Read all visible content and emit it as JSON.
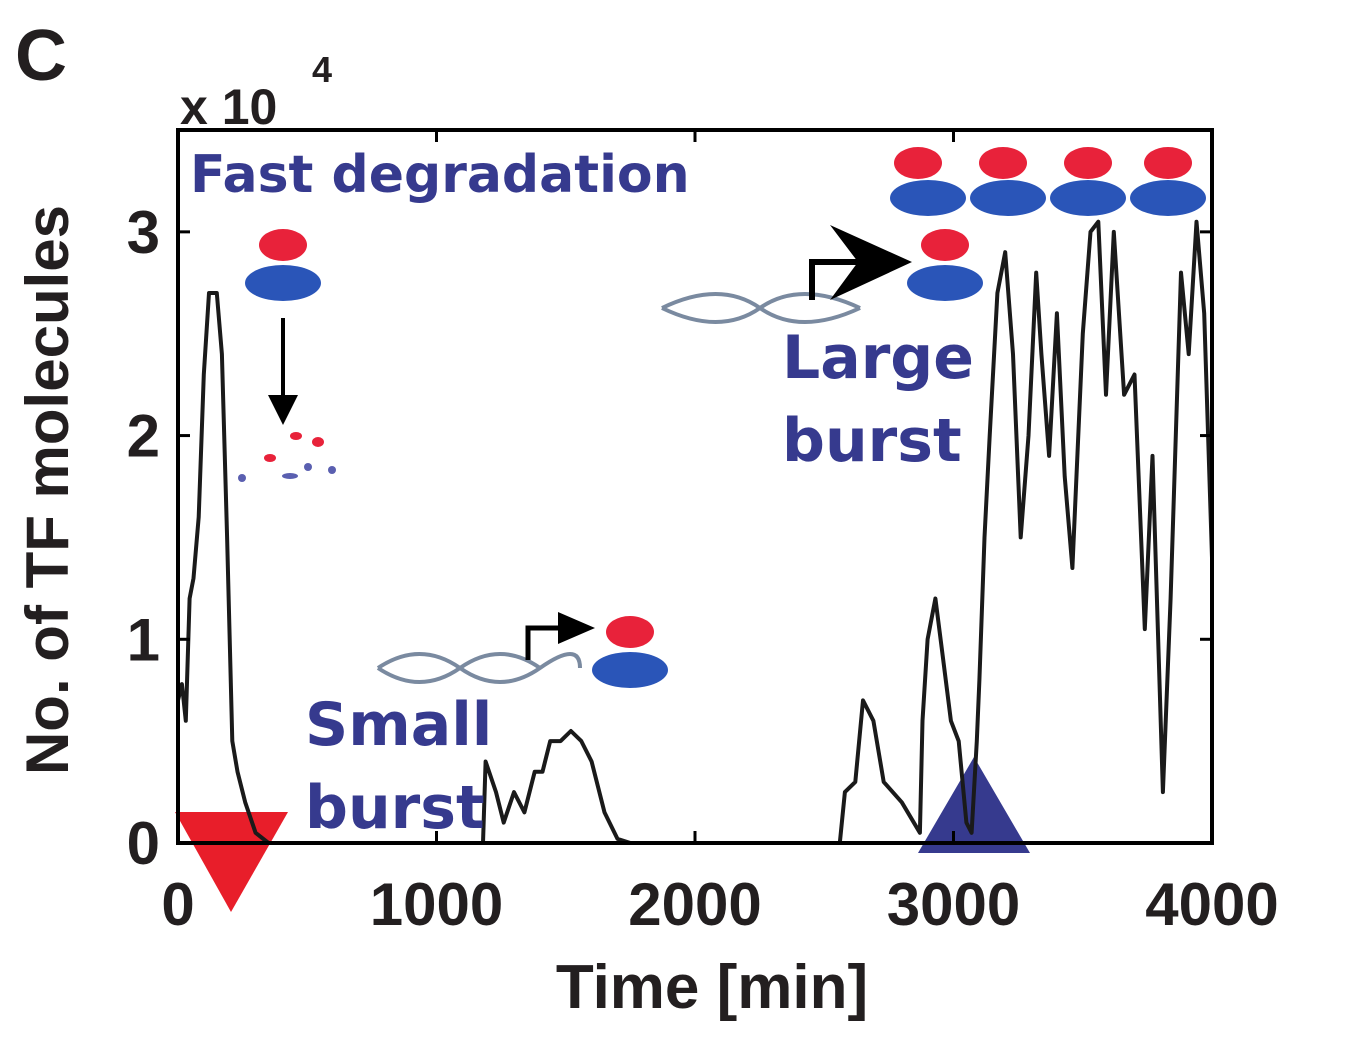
{
  "chart_data": {
    "type": "line",
    "panel_label": "C",
    "y_multiplier": {
      "base": "x 10",
      "exponent": "4"
    },
    "xlabel": "Time [min]",
    "ylabel": "No. of TF molecules",
    "xlim": [
      0,
      4000
    ],
    "ylim": [
      0,
      3.5
    ],
    "xticks": [
      0,
      1000,
      2000,
      3000,
      4000
    ],
    "yticks": [
      0,
      1,
      2,
      3
    ],
    "color": "#1a1a1a",
    "annotations": [
      {
        "lines": [
          "Fast degradation"
        ]
      },
      {
        "lines": [
          "Small",
          "burst"
        ]
      },
      {
        "lines": [
          "Large",
          "burst"
        ]
      }
    ],
    "x": [
      0,
      15,
      30,
      45,
      60,
      80,
      100,
      120,
      150,
      170,
      190,
      210,
      230,
      260,
      300,
      350,
      1180,
      1190,
      1230,
      1260,
      1300,
      1340,
      1380,
      1410,
      1440,
      1480,
      1520,
      1560,
      1600,
      1650,
      1700,
      1750,
      2560,
      2580,
      2620,
      2650,
      2690,
      2730,
      2800,
      2870,
      2880,
      2900,
      2930,
      2960,
      2990,
      3020,
      3050,
      3070,
      3090,
      3100,
      3120,
      3140,
      3170,
      3200,
      3230,
      3260,
      3290,
      3320,
      3340,
      3370,
      3400,
      3430,
      3460,
      3500,
      3530,
      3560,
      3590,
      3620,
      3660,
      3700,
      3740,
      3770,
      3810,
      3840,
      3880,
      3910,
      3940,
      3970,
      4000
    ],
    "values": [
      0.7,
      0.78,
      0.6,
      1.2,
      1.3,
      1.6,
      2.3,
      2.7,
      2.7,
      2.4,
      1.5,
      0.5,
      0.35,
      0.2,
      0.05,
      0,
      0,
      0.4,
      0.25,
      0.1,
      0.25,
      0.15,
      0.35,
      0.35,
      0.5,
      0.5,
      0.55,
      0.5,
      0.4,
      0.15,
      0.02,
      0,
      0,
      0.25,
      0.3,
      0.7,
      0.6,
      0.3,
      0.2,
      0.05,
      0.6,
      1.0,
      1.2,
      0.9,
      0.6,
      0.5,
      0.1,
      0.05,
      0.5,
      0.8,
      1.5,
      2.0,
      2.7,
      2.9,
      2.4,
      1.5,
      2.0,
      2.8,
      2.4,
      1.9,
      2.6,
      1.8,
      1.35,
      2.5,
      3.0,
      3.05,
      2.2,
      3.0,
      2.2,
      2.3,
      1.05,
      1.9,
      0.25,
      1.2,
      2.8,
      2.4,
      3.05,
      2.6,
      1.4
    ]
  }
}
